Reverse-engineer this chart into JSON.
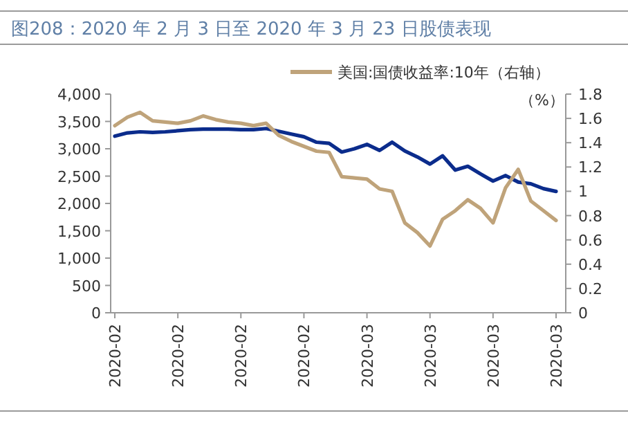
{
  "chart_data": {
    "type": "line",
    "title": "图208：2020 年 2 月 3 日至 2020 年 3 月 23 日股债表现",
    "y2label": "（%）",
    "categories": [
      "2020-02",
      null,
      null,
      null,
      null,
      "2020-02",
      null,
      null,
      null,
      null,
      "2020-02",
      null,
      null,
      null,
      null,
      "2020-02",
      null,
      null,
      null,
      null,
      "2020-03",
      null,
      null,
      null,
      null,
      "2020-03",
      null,
      null,
      null,
      null,
      "2020-03",
      null,
      null,
      null,
      null,
      "2020-03"
    ],
    "series": [
      {
        "color": "#0b2c8c",
        "values": [
          3230,
          3290,
          3310,
          3300,
          3310,
          3330,
          3350,
          3360,
          3360,
          3360,
          3350,
          3350,
          3370,
          3320,
          3270,
          3220,
          3120,
          3100,
          2940,
          3000,
          3080,
          2970,
          3120,
          2960,
          2850,
          2720,
          2870,
          2610,
          2680,
          2540,
          2410,
          2510,
          2390,
          2360,
          2270,
          2220
        ]
      },
      {
        "name": "美国:国债收益率:10年（右轴）",
        "color": "#bfa37a",
        "axis": "y2",
        "values": [
          1.54,
          1.61,
          1.65,
          1.58,
          1.57,
          1.56,
          1.58,
          1.62,
          1.59,
          1.57,
          1.56,
          1.54,
          1.56,
          1.46,
          1.41,
          1.37,
          1.33,
          1.32,
          1.12,
          1.11,
          1.1,
          1.02,
          1.0,
          0.74,
          0.66,
          0.55,
          0.77,
          0.84,
          0.93,
          0.86,
          0.74,
          1.03,
          1.18,
          0.92,
          0.84,
          0.76
        ]
      }
    ],
    "ylim": [
      0,
      4000
    ],
    "yticks": [
      0,
      {
        "value": 500,
        "label": "500"
      },
      {
        "value": 1000,
        "label": "1,000"
      },
      {
        "value": 1500,
        "label": "1,500"
      },
      {
        "value": 2000,
        "label": "2,000"
      },
      {
        "value": 2500,
        "label": "2,500"
      },
      {
        "value": 3000,
        "label": "3,000"
      },
      {
        "value": 3500,
        "label": "3,500"
      },
      {
        "value": 4000,
        "label": "4,000"
      }
    ],
    "y2lim": [
      0,
      1.8
    ],
    "y2ticks": [
      0,
      0.2,
      0.4,
      0.6,
      0.8,
      1,
      1.2,
      1.4,
      1.6,
      1.8
    ],
    "legend": "top",
    "grid": false,
    "marker": "none",
    "line_style": "solid"
  }
}
